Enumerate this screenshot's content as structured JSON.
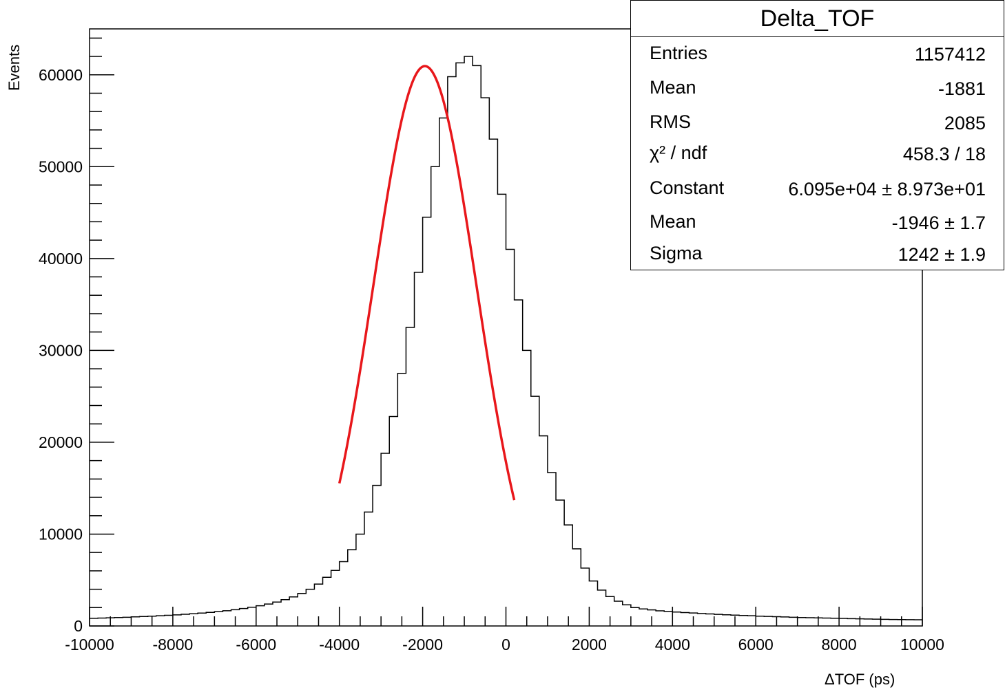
{
  "chart_data": {
    "type": "histogram",
    "ylabel": "Events",
    "xlabel": "ΔTOF (ps)",
    "xlim": [
      -10000,
      10000
    ],
    "ylim": [
      0,
      65000
    ],
    "x_ticks": [
      -10000,
      -8000,
      -6000,
      -4000,
      -2000,
      0,
      2000,
      4000,
      6000,
      8000,
      10000
    ],
    "y_ticks": [
      0,
      10000,
      20000,
      30000,
      40000,
      50000,
      60000
    ],
    "bin_width": 200,
    "bin_counts": [
      830,
      860,
      890,
      920,
      950,
      990,
      1030,
      1070,
      1110,
      1160,
      1210,
      1270,
      1330,
      1400,
      1480,
      1560,
      1660,
      1770,
      1900,
      2040,
      2200,
      2390,
      2600,
      2860,
      3160,
      3540,
      4000,
      4560,
      5300,
      6050,
      7000,
      8300,
      10000,
      12400,
      15300,
      18800,
      22800,
      27500,
      32500,
      38500,
      44500,
      50000,
      55300,
      59800,
      61300,
      62000,
      61000,
      57500,
      53000,
      47000,
      41000,
      35500,
      30000,
      25000,
      20700,
      16700,
      13700,
      11000,
      8400,
      6300,
      4900,
      3900,
      3200,
      2700,
      2300,
      2000,
      1850,
      1750,
      1650,
      1580,
      1520,
      1460,
      1410,
      1360,
      1310,
      1260,
      1220,
      1180,
      1140,
      1110,
      1070,
      1040,
      1010,
      980,
      950,
      920,
      900,
      880,
      860,
      840,
      820,
      800,
      780,
      760,
      740,
      720,
      700,
      690,
      680,
      670
    ],
    "fit": {
      "function": "gaus",
      "constant": 60950,
      "mean": -1946,
      "sigma": 1242,
      "range": [
        -4000,
        200
      ],
      "color": "#e8171b"
    },
    "histogram_color": "#000000",
    "stats": {
      "title": "Delta_TOF",
      "rows": [
        {
          "label": "Entries",
          "value": "1157412"
        },
        {
          "label": "Mean",
          "value": "-1881"
        },
        {
          "label": "RMS",
          "value": "2085"
        },
        {
          "label": "χ² / ndf",
          "value": "458.3 / 18"
        },
        {
          "label": "Constant",
          "value": "6.095e+04 ± 8.973e+01"
        },
        {
          "label": "Mean",
          "value": "-1946 ± 1.7"
        },
        {
          "label": "Sigma",
          "value": "1242 ± 1.9"
        }
      ]
    }
  }
}
